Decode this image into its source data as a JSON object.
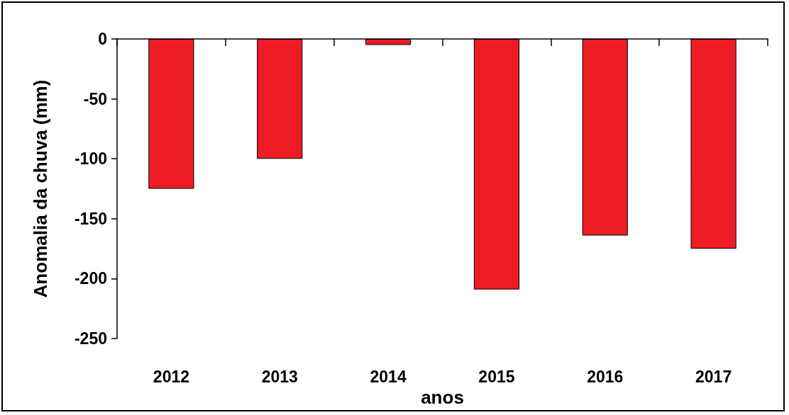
{
  "chart_data": {
    "type": "bar",
    "xlabel": "anos",
    "ylabel": "Anomalia da chuva (mm)",
    "categories": [
      "2012",
      "2013",
      "2014",
      "2015",
      "2016",
      "2017"
    ],
    "values": [
      -125,
      -100,
      -5,
      -209,
      -164,
      -175
    ],
    "color": "#ed1c24",
    "ylim": [
      -250,
      0
    ],
    "yticks": [
      -250,
      -200,
      -150,
      -100,
      -50,
      0
    ],
    "grid": false
  }
}
